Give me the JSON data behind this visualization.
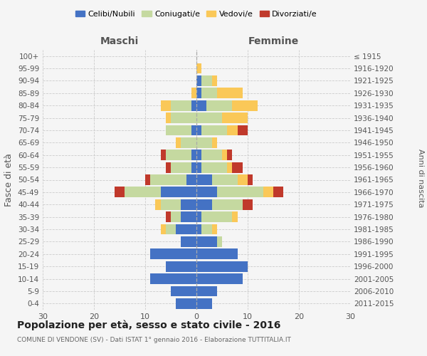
{
  "age_groups": [
    "0-4",
    "5-9",
    "10-14",
    "15-19",
    "20-24",
    "25-29",
    "30-34",
    "35-39",
    "40-44",
    "45-49",
    "50-54",
    "55-59",
    "60-64",
    "65-69",
    "70-74",
    "75-79",
    "80-84",
    "85-89",
    "90-94",
    "95-99",
    "100+"
  ],
  "birth_years": [
    "2011-2015",
    "2006-2010",
    "2001-2005",
    "1996-2000",
    "1991-1995",
    "1986-1990",
    "1981-1985",
    "1976-1980",
    "1971-1975",
    "1966-1970",
    "1961-1965",
    "1956-1960",
    "1951-1955",
    "1946-1950",
    "1941-1945",
    "1936-1940",
    "1931-1935",
    "1926-1930",
    "1921-1925",
    "1916-1920",
    "≤ 1915"
  ],
  "males": {
    "celibi": [
      4,
      5,
      9,
      6,
      9,
      3,
      4,
      3,
      3,
      7,
      2,
      1,
      1,
      0,
      1,
      0,
      1,
      0,
      0,
      0,
      0
    ],
    "coniugati": [
      0,
      0,
      0,
      0,
      0,
      0,
      2,
      2,
      4,
      7,
      7,
      4,
      5,
      3,
      5,
      5,
      4,
      0,
      0,
      0,
      0
    ],
    "vedovi": [
      0,
      0,
      0,
      0,
      0,
      0,
      1,
      0,
      1,
      0,
      0,
      0,
      0,
      1,
      0,
      1,
      2,
      1,
      0,
      0,
      0
    ],
    "divorziati": [
      0,
      0,
      0,
      0,
      0,
      0,
      0,
      1,
      0,
      2,
      1,
      1,
      1,
      0,
      0,
      0,
      0,
      0,
      0,
      0,
      0
    ]
  },
  "females": {
    "nubili": [
      3,
      4,
      9,
      10,
      8,
      4,
      1,
      1,
      3,
      4,
      3,
      1,
      1,
      0,
      1,
      0,
      2,
      1,
      1,
      0,
      0
    ],
    "coniugate": [
      0,
      0,
      0,
      0,
      0,
      1,
      2,
      6,
      6,
      9,
      5,
      5,
      4,
      3,
      5,
      5,
      5,
      3,
      2,
      0,
      0
    ],
    "vedove": [
      0,
      0,
      0,
      0,
      0,
      0,
      1,
      1,
      0,
      2,
      2,
      1,
      1,
      1,
      2,
      5,
      5,
      5,
      1,
      1,
      0
    ],
    "divorziate": [
      0,
      0,
      0,
      0,
      0,
      0,
      0,
      0,
      2,
      2,
      1,
      2,
      1,
      0,
      2,
      0,
      0,
      0,
      0,
      0,
      0
    ]
  },
  "colors": {
    "celibi": "#4472c4",
    "coniugati": "#c5d9a0",
    "vedovi": "#fac858",
    "divorziati": "#c0392b"
  },
  "xlim": 30,
  "title": "Popolazione per età, sesso e stato civile - 2016",
  "subtitle": "COMUNE DI VENDONE (SV) - Dati ISTAT 1° gennaio 2016 - Elaborazione TUTTITALIA.IT",
  "ylabel_left": "Fasce di età",
  "ylabel_right": "Anni di nascita",
  "xlabel_left": "Maschi",
  "xlabel_right": "Femmine",
  "bg_color": "#f5f5f5",
  "grid_color": "#cccccc",
  "bar_height": 0.85
}
